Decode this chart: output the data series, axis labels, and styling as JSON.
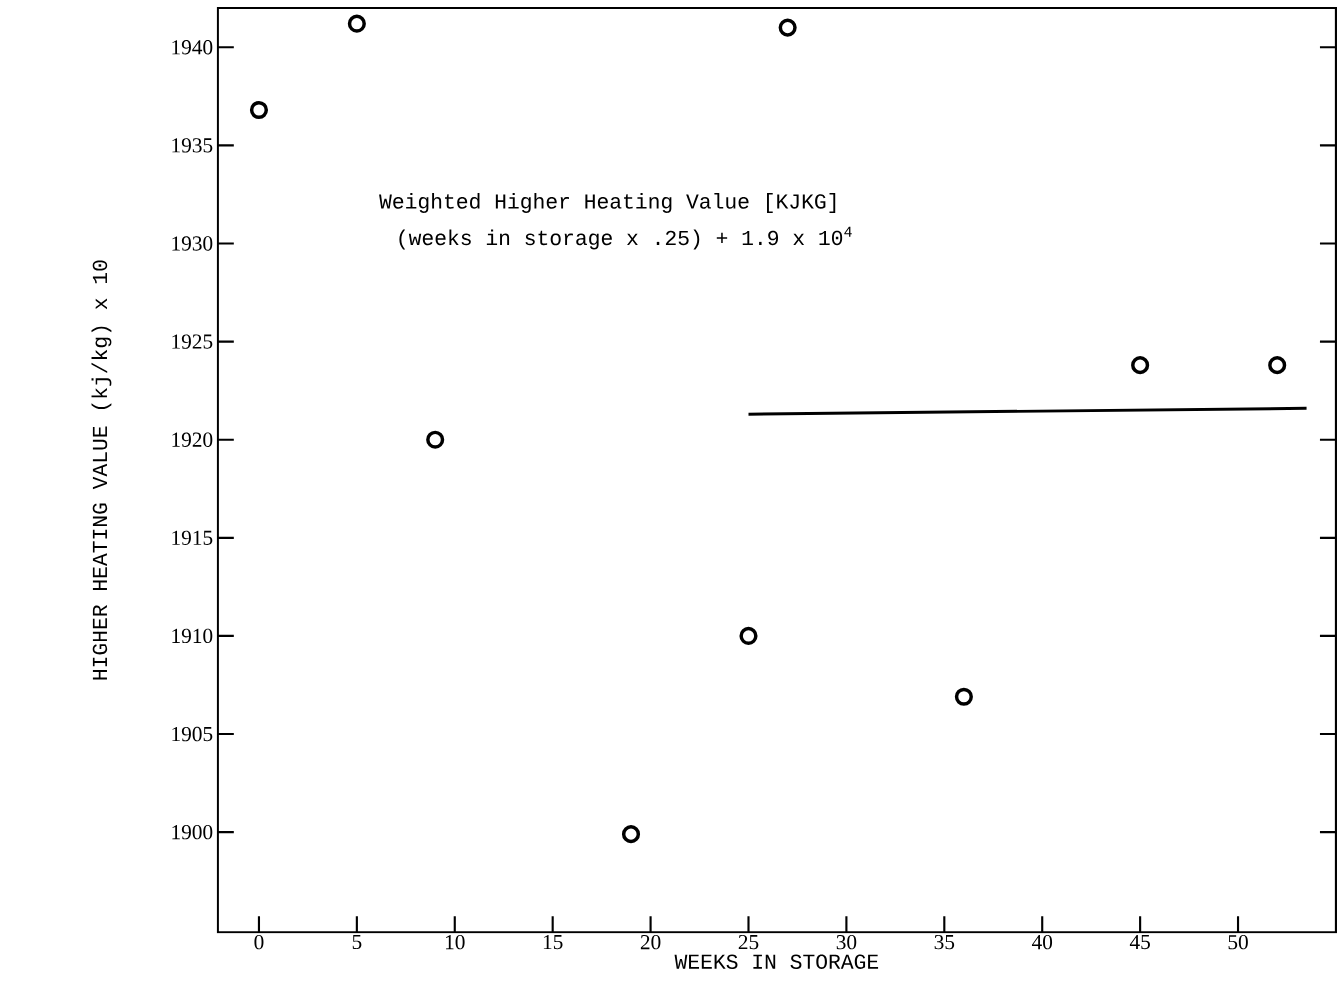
{
  "chart_data": {
    "type": "scatter",
    "xlabel": "WEEKS IN STORAGE",
    "ylabel": "HIGHER HEATING VALUE (kj/kg) x 10",
    "annotations": [
      "Weighted Higher Heating Value [KJKG]",
      "(weeks in storage x .25) + 1.9 x 10$^{4}$"
    ],
    "xlim": [
      -2.1,
      55
    ],
    "ylim": [
      1894.9,
      1942
    ],
    "xticks": [
      0,
      5,
      10,
      15,
      20,
      25,
      30,
      35,
      40,
      45,
      50
    ],
    "yticks": [
      1900,
      1905,
      1910,
      1915,
      1920,
      1925,
      1930,
      1935,
      1940
    ],
    "marker": "circle",
    "grid": false,
    "series": [
      {
        "color": "#000000",
        "x": [
          0,
          5,
          9,
          19,
          25,
          27,
          36,
          45,
          52
        ],
        "values": [
          1936.8,
          1941.2,
          1920,
          1899.9,
          1910,
          1941,
          1906.9,
          1923.8,
          1923.8
        ]
      },
      {
        "type": "line",
        "color": "#000000",
        "marker": "none",
        "line_style": "solid",
        "x": [
          25,
          53.5
        ],
        "values": [
          1921.3,
          1921.6
        ]
      }
    ]
  }
}
